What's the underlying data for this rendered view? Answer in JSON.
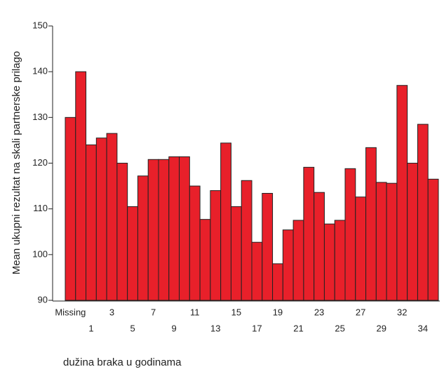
{
  "chart_data": {
    "type": "bar",
    "x_label": "dužina braka u godinama",
    "y_label": "Mean ukupni rezultat na skali partnerske prilago",
    "categories": [
      "Missing",
      null,
      "1",
      null,
      "3",
      null,
      "5",
      null,
      "7",
      null,
      "9",
      null,
      "11",
      null,
      "13",
      null,
      "15",
      null,
      "17",
      null,
      "19",
      null,
      "21",
      null,
      "23",
      null,
      "25",
      null,
      "27",
      null,
      "29",
      null,
      "32",
      null,
      "34",
      null
    ],
    "values": [
      130,
      140,
      124,
      125.5,
      126.5,
      120,
      110.5,
      117.2,
      120.8,
      120.8,
      121.4,
      121.4,
      115,
      107.7,
      114,
      124.4,
      110.5,
      116.2,
      102.7,
      113.4,
      98,
      105.4,
      107.5,
      119.1,
      113.6,
      106.7,
      107.5,
      118.8,
      112.6,
      123.4,
      115.8,
      115.6,
      137,
      120,
      128.5,
      116.5
    ],
    "color": "#e8202a",
    "ylim": [
      90,
      150
    ],
    "yticks": [
      90,
      100,
      110,
      120,
      130,
      140,
      150
    ],
    "grid": false
  }
}
